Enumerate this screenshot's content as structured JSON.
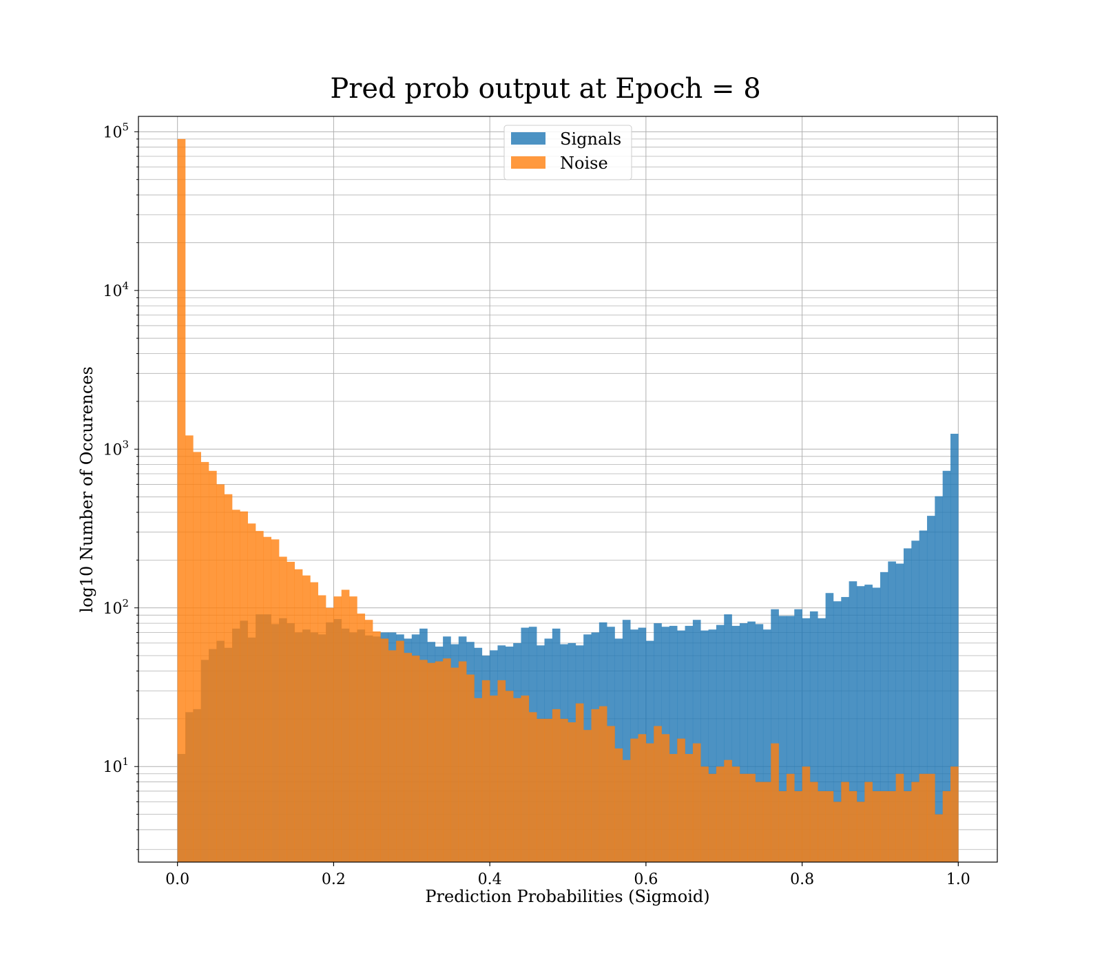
{
  "chart_data": {
    "type": "bar",
    "subtype": "histogram",
    "title": "Pred prob output at Epoch = 8",
    "xlabel": "Prediction Probabilities (Sigmoid)",
    "ylabel": "log10 Number of Occurences",
    "x_range": [
      -0.05,
      1.05
    ],
    "ylim": [
      2.5,
      125000
    ],
    "y_scale": "log",
    "x_ticks": [
      "0.0",
      "0.2",
      "0.4",
      "0.6",
      "0.8",
      "1.0"
    ],
    "y_ticks": [
      {
        "base": "10",
        "exp": "1",
        "value": 10
      },
      {
        "base": "10",
        "exp": "2",
        "value": 100
      },
      {
        "base": "10",
        "exp": "3",
        "value": 1000
      },
      {
        "base": "10",
        "exp": "4",
        "value": 10000
      },
      {
        "base": "10",
        "exp": "5",
        "value": 100000
      }
    ],
    "grid": true,
    "legend_position": "top-center",
    "bins": 100,
    "bin_range": [
      0,
      1
    ],
    "series": [
      {
        "name": "Signals",
        "color": "#1f77b4",
        "alpha": 0.8,
        "values": [
          12,
          22,
          23,
          47,
          55,
          62,
          56,
          74,
          83,
          65,
          91,
          91,
          79,
          86,
          80,
          70,
          73,
          70,
          68,
          81,
          85,
          74,
          70,
          73,
          67,
          66,
          70,
          70,
          68,
          64,
          68,
          74,
          61,
          57,
          66,
          59,
          66,
          61,
          56,
          50,
          54,
          58,
          57,
          60,
          75,
          76,
          58,
          64,
          74,
          59,
          60,
          58,
          68,
          70,
          81,
          76,
          64,
          84,
          73,
          75,
          62,
          80,
          76,
          77,
          72,
          77,
          84,
          72,
          73,
          78,
          91,
          77,
          80,
          82,
          79,
          73,
          98,
          89,
          89,
          98,
          86,
          95,
          86,
          124,
          110,
          117,
          147,
          137,
          140,
          134,
          168,
          196,
          190,
          237,
          265,
          307,
          380,
          505,
          730,
          1250
        ]
      },
      {
        "name": "Noise",
        "color": "#ff7f0e",
        "alpha": 0.8,
        "values": [
          90000,
          1220,
          960,
          830,
          730,
          600,
          520,
          415,
          405,
          340,
          305,
          280,
          270,
          210,
          195,
          175,
          160,
          145,
          120,
          100,
          118,
          130,
          118,
          92,
          84,
          71,
          64,
          54,
          62,
          52,
          50,
          47,
          45,
          46,
          48,
          42,
          46,
          38,
          27,
          35,
          28,
          35,
          30,
          27,
          28,
          22,
          20,
          20,
          23,
          20,
          19,
          25,
          17,
          23,
          24,
          18,
          13,
          11,
          15,
          16,
          14,
          18,
          16,
          12,
          15,
          12,
          14,
          10,
          9,
          10,
          11,
          10,
          9,
          9,
          8,
          8,
          14,
          7,
          9,
          7,
          10,
          8,
          7,
          7,
          6,
          8,
          7,
          6,
          8,
          7,
          7,
          7,
          9,
          7,
          8,
          9,
          9,
          5,
          7,
          10
        ]
      }
    ],
    "overlay": {
      "Signals": [
        0,
        0,
        0,
        0,
        0,
        0,
        0,
        0,
        0,
        0,
        0,
        0,
        0,
        0,
        0,
        0,
        0,
        0,
        0,
        0,
        0,
        0,
        0,
        0,
        0,
        0,
        0,
        0,
        0,
        0,
        0,
        0,
        0,
        0,
        0,
        0,
        0,
        0,
        0,
        0,
        0,
        0,
        0,
        0,
        0,
        0,
        0,
        0,
        0,
        0,
        0,
        0,
        0,
        0,
        0,
        0,
        0,
        0,
        0,
        0,
        0,
        0,
        0,
        0,
        0,
        0,
        0,
        0,
        0,
        0,
        0,
        0,
        0,
        0,
        0,
        0,
        0,
        0,
        0,
        0,
        0,
        0,
        0,
        0,
        0,
        0,
        0,
        0,
        0,
        0,
        0,
        0,
        0,
        0,
        0,
        0,
        0,
        0,
        0,
        0
      ]
    }
  }
}
